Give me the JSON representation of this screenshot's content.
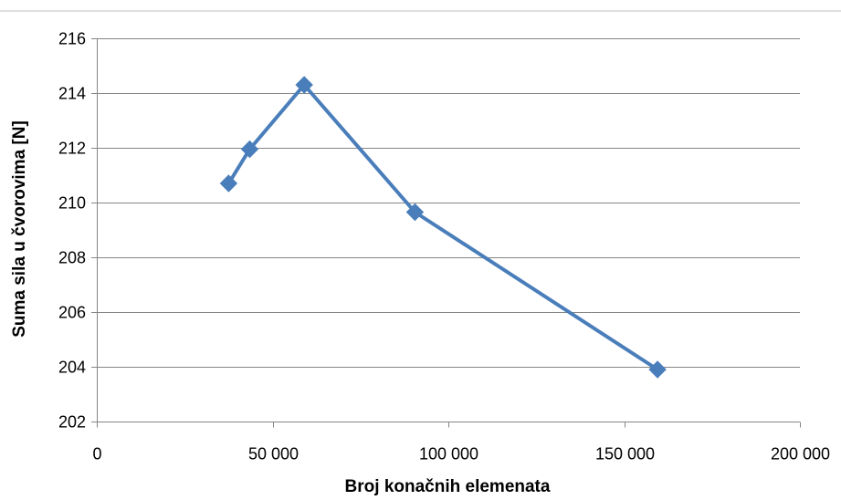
{
  "chart_data": {
    "type": "scatter",
    "xlabel": "Broj konačnih elemenata",
    "ylabel": "Suma sila u čvorovima [N]",
    "xlim": [
      0,
      200000
    ],
    "ylim": [
      202,
      216
    ],
    "x_ticks": [
      0,
      50000,
      100000,
      150000,
      200000
    ],
    "x_tick_labels": [
      "0",
      "50 000",
      "100 000",
      "150 000",
      "200 000"
    ],
    "y_ticks": [
      202,
      204,
      206,
      208,
      210,
      212,
      214,
      216
    ],
    "y_tick_labels": [
      "202",
      "204",
      "206",
      "208",
      "210",
      "212",
      "214",
      "216"
    ],
    "grid": "horizontal",
    "legend": "none",
    "series": [
      {
        "color": "#4a7ebb",
        "marker": "diamond",
        "lines": true,
        "x": [
          37500,
          43500,
          59000,
          90500,
          159500
        ],
        "y": [
          210.7,
          211.95,
          214.3,
          209.65,
          203.9
        ]
      }
    ]
  }
}
